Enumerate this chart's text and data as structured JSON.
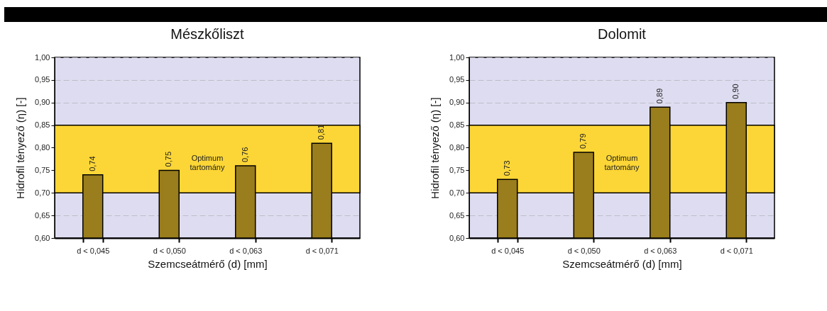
{
  "chart_data": [
    {
      "type": "bar",
      "title": "Mészkőliszt",
      "xlabel": "Szemcseátmérő (d) [mm]",
      "ylabel": "Hidrofil tényező (η) [-]",
      "categories": [
        "d < 0,045",
        "d < 0,050",
        "d < 0,063",
        "d < 0,071"
      ],
      "values": [
        0.74,
        0.75,
        0.76,
        0.81
      ],
      "value_labels": [
        "0,74",
        "0,75",
        "0,76",
        "0,81"
      ],
      "color": "#9a7d1c",
      "ylim": [
        0.6,
        1.0
      ],
      "yticks": [
        {
          "value": 0.6,
          "label": "0,60"
        },
        {
          "value": 0.65,
          "label": "0,65"
        },
        {
          "value": 0.7,
          "label": "0,70"
        },
        {
          "value": 0.75,
          "label": "0,75"
        },
        {
          "value": 0.8,
          "label": "0,80"
        },
        {
          "value": 0.85,
          "label": "0,85"
        },
        {
          "value": 0.9,
          "label": "0,90"
        },
        {
          "value": 0.95,
          "label": "0,95"
        },
        {
          "value": 1.0,
          "label": "1,00"
        }
      ],
      "grid": "y",
      "bands": [
        {
          "axis": "y",
          "from": 0.7,
          "to": 0.85,
          "label": "Optimum tartomány",
          "color": "#fcd636"
        }
      ]
    },
    {
      "type": "bar",
      "title": "Dolomit",
      "xlabel": "Szemcseátmérő (d) [mm]",
      "ylabel": "Hidrofil tényező (η) [-]",
      "categories": [
        "d < 0,045",
        "d < 0,050",
        "d < 0,063",
        "d < 0,071"
      ],
      "values": [
        0.73,
        0.79,
        0.89,
        0.9
      ],
      "value_labels": [
        "0,73",
        "0,79",
        "0,89",
        "0,90"
      ],
      "color": "#9a7d1c",
      "ylim": [
        0.6,
        1.0
      ],
      "yticks": [
        {
          "value": 0.6,
          "label": "0,60"
        },
        {
          "value": 0.65,
          "label": "0,65"
        },
        {
          "value": 0.7,
          "label": "0,70"
        },
        {
          "value": 0.75,
          "label": "0,75"
        },
        {
          "value": 0.8,
          "label": "0,80"
        },
        {
          "value": 0.85,
          "label": "0,85"
        },
        {
          "value": 0.9,
          "label": "0,90"
        },
        {
          "value": 0.95,
          "label": "0,95"
        },
        {
          "value": 1.0,
          "label": "1,00"
        }
      ],
      "grid": "y",
      "bands": [
        {
          "axis": "y",
          "from": 0.7,
          "to": 0.85,
          "label": "Optimum tartomány",
          "color": "#fcd636"
        }
      ]
    }
  ]
}
